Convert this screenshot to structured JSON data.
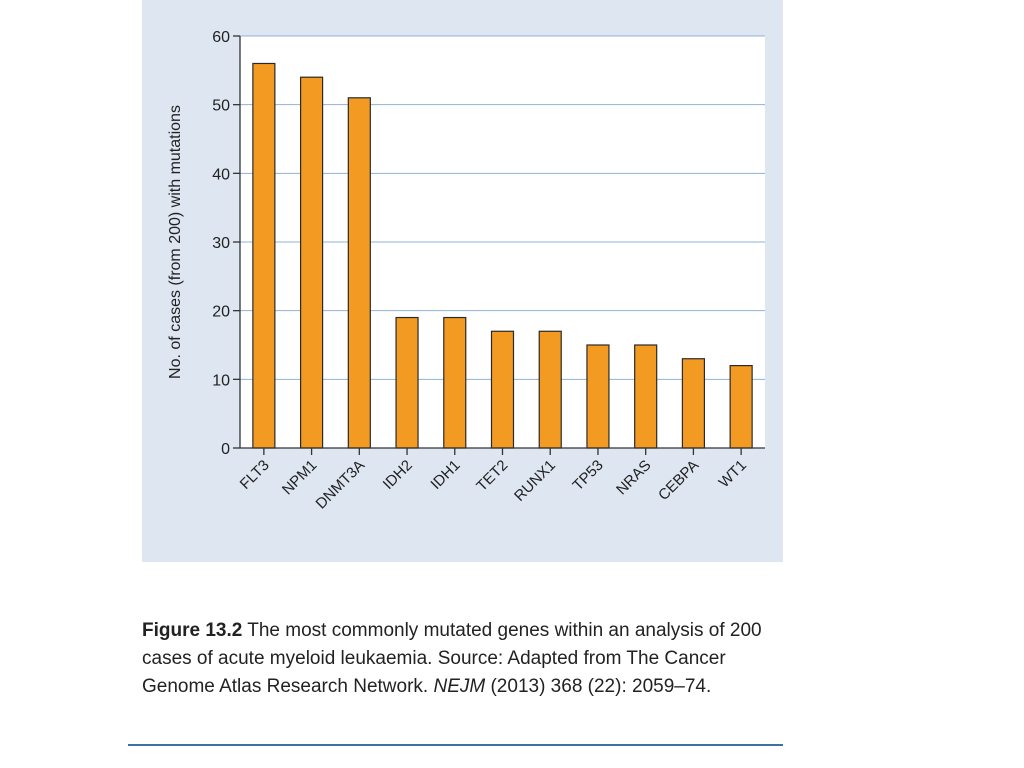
{
  "chart_data": {
    "type": "bar",
    "categories": [
      "FLT3",
      "NPM1",
      "DNMT3A",
      "IDH2",
      "IDH1",
      "TET2",
      "RUNX1",
      "TP53",
      "NRAS",
      "CEBPA",
      "WT1"
    ],
    "values": [
      56,
      54,
      51,
      19,
      19,
      17,
      17,
      15,
      15,
      13,
      12
    ],
    "ylabel": "No. of cases (from 200) with mutations",
    "xlabel": "",
    "ylim": [
      0,
      60
    ],
    "yticks": [
      0,
      10,
      20,
      30,
      40,
      50,
      60
    ],
    "grid": true,
    "bar_color": "#f39a22",
    "bar_edge_color": "#2a2a2a",
    "grid_color": "#8fb3d6",
    "panel_color": "#dde6f1"
  },
  "caption": {
    "label": "Figure 13.2",
    "text": " The most commonly mutated genes within an analysis of 200 cases of acute myeloid leukaemia. Source: Adapted from The Cancer Genome Atlas Research Network. ",
    "journal": "NEJM",
    "citation": " (2013) 368 (22): 2059–74."
  }
}
